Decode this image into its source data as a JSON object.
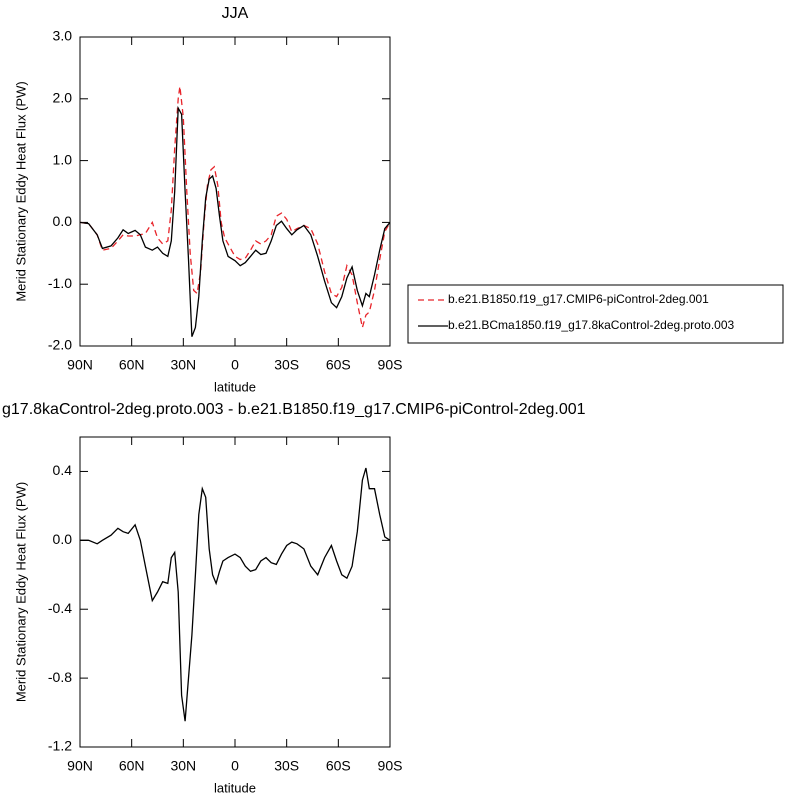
{
  "chart_data": [
    {
      "type": "line",
      "title": "JJA",
      "xlabel": "latitude",
      "ylabel": "Merid Stationary Eddy Heat Flux (PW)",
      "xlim": [
        90,
        -90
      ],
      "xticks": [
        {
          "value": 90,
          "label": "90N"
        },
        {
          "value": 60,
          "label": "60N"
        },
        {
          "value": 30,
          "label": "30N"
        },
        0,
        {
          "value": -30,
          "label": "30S"
        },
        {
          "value": -60,
          "label": "60S"
        },
        {
          "value": -90,
          "label": "90S"
        }
      ],
      "ylim": [
        -2,
        3
      ],
      "yticks": [
        {
          "value": -2,
          "label": "-2.0"
        },
        {
          "value": -1,
          "label": "-1.0"
        },
        {
          "value": 0,
          "label": "0.0"
        },
        {
          "value": 1,
          "label": "1.0"
        },
        {
          "value": 2,
          "label": "2.0"
        },
        {
          "value": 3,
          "label": "3.0"
        }
      ],
      "legend": "right",
      "series": [
        {
          "name": "b.e21.B1850.f19_g17.CMIP6-piControl-2deg.001",
          "color": "#e8242a",
          "style": "dashed",
          "x": [
            90,
            85,
            80,
            77,
            72,
            68,
            65,
            62,
            58,
            55,
            52,
            48,
            45,
            42,
            39,
            37,
            35,
            33,
            32,
            30,
            28,
            26,
            24,
            22,
            20,
            18,
            16,
            14,
            12,
            10,
            8,
            6,
            3,
            0,
            -3,
            -6,
            -9,
            -12,
            -15,
            -18,
            -21,
            -24,
            -27,
            -30,
            -33,
            -36,
            -40,
            -44,
            -48,
            -52,
            -56,
            -59,
            -62,
            -65,
            -68,
            -71,
            -74,
            -76,
            -78,
            -81,
            -84,
            -87,
            -90
          ],
          "values": [
            0,
            -0.02,
            -0.2,
            -0.45,
            -0.42,
            -0.3,
            -0.2,
            -0.22,
            -0.22,
            -0.2,
            -0.18,
            0.0,
            -0.25,
            -0.35,
            -0.3,
            0.2,
            1.2,
            2.0,
            2.2,
            1.7,
            0.5,
            -0.5,
            -1.1,
            -1.15,
            -0.8,
            0.0,
            0.6,
            0.85,
            0.9,
            0.6,
            0.0,
            -0.25,
            -0.4,
            -0.55,
            -0.6,
            -0.58,
            -0.45,
            -0.3,
            -0.35,
            -0.3,
            -0.2,
            0.1,
            0.15,
            0.05,
            -0.15,
            -0.1,
            -0.05,
            -0.1,
            -0.35,
            -0.8,
            -1.15,
            -1.2,
            -1.05,
            -0.7,
            -0.85,
            -1.3,
            -1.7,
            -1.5,
            -1.45,
            -1.1,
            -0.6,
            -0.15,
            0
          ]
        },
        {
          "name": "b.e21.BCma1850.f19_g17.8kaControl-2deg.proto.003",
          "color": "#000000",
          "style": "solid",
          "x": [
            90,
            85,
            80,
            77,
            72,
            68,
            65,
            62,
            58,
            55,
            52,
            48,
            45,
            42,
            39,
            37,
            35,
            33,
            31,
            29,
            27,
            25,
            23,
            21,
            19,
            17,
            15,
            13,
            11,
            9,
            7,
            4,
            0,
            -3,
            -6,
            -9,
            -12,
            -15,
            -18,
            -21,
            -24,
            -27,
            -30,
            -33,
            -36,
            -40,
            -44,
            -48,
            -52,
            -56,
            -59,
            -62,
            -65,
            -68,
            -71,
            -74,
            -76,
            -78,
            -81,
            -84,
            -87,
            -90
          ],
          "values": [
            0,
            -0.02,
            -0.2,
            -0.42,
            -0.38,
            -0.25,
            -0.12,
            -0.18,
            -0.13,
            -0.2,
            -0.4,
            -0.45,
            -0.4,
            -0.5,
            -0.55,
            -0.3,
            0.5,
            1.85,
            1.75,
            0.5,
            -0.6,
            -1.85,
            -1.7,
            -1.2,
            -0.3,
            0.4,
            0.7,
            0.75,
            0.55,
            0.1,
            -0.3,
            -0.55,
            -0.62,
            -0.7,
            -0.65,
            -0.55,
            -0.45,
            -0.52,
            -0.5,
            -0.3,
            -0.05,
            0.02,
            -0.1,
            -0.2,
            -0.12,
            -0.05,
            -0.2,
            -0.55,
            -0.95,
            -1.3,
            -1.38,
            -1.2,
            -0.9,
            -0.72,
            -1.1,
            -1.35,
            -1.15,
            -1.2,
            -0.85,
            -0.45,
            -0.1,
            0
          ]
        }
      ]
    },
    {
      "type": "line",
      "title": "g17.8kaControl-2deg.proto.003 - b.e21.B1850.f19_g17.CMIP6-piControl-2deg.001",
      "xlabel": "latitude",
      "ylabel": "Merid Stationary Eddy Heat Flux (PW)",
      "xlim": [
        90,
        -90
      ],
      "xticks": [
        {
          "value": 90,
          "label": "90N"
        },
        {
          "value": 60,
          "label": "60N"
        },
        {
          "value": 30,
          "label": "30N"
        },
        0,
        {
          "value": -30,
          "label": "30S"
        },
        {
          "value": -60,
          "label": "60S"
        },
        {
          "value": -90,
          "label": "90S"
        }
      ],
      "ylim": [
        -1.2,
        0.6
      ],
      "yticks": [
        -1.2,
        -0.8,
        -0.4,
        {
          "value": 0,
          "label": "0.0"
        },
        0.4
      ],
      "series": [
        {
          "color": "#000000",
          "style": "solid",
          "x": [
            90,
            85,
            80,
            77,
            72,
            68,
            65,
            62,
            58,
            55,
            52,
            48,
            45,
            42,
            39,
            37,
            35,
            33,
            31,
            29,
            27,
            25,
            23,
            21,
            19,
            17,
            15,
            13,
            11,
            9,
            7,
            4,
            0,
            -3,
            -6,
            -9,
            -12,
            -15,
            -18,
            -21,
            -24,
            -27,
            -30,
            -33,
            -36,
            -40,
            -44,
            -48,
            -52,
            -56,
            -59,
            -62,
            -65,
            -68,
            -71,
            -74,
            -76,
            -78,
            -81,
            -84,
            -87,
            -90
          ],
          "values": [
            0,
            0,
            -0.02,
            0,
            0.03,
            0.07,
            0.05,
            0.04,
            0.09,
            0.0,
            -0.15,
            -0.35,
            -0.3,
            -0.24,
            -0.25,
            -0.1,
            -0.07,
            -0.3,
            -0.9,
            -1.05,
            -0.8,
            -0.55,
            -0.2,
            0.15,
            0.3,
            0.25,
            -0.05,
            -0.2,
            -0.25,
            -0.18,
            -0.12,
            -0.1,
            -0.08,
            -0.1,
            -0.15,
            -0.18,
            -0.17,
            -0.12,
            -0.1,
            -0.13,
            -0.14,
            -0.08,
            -0.03,
            -0.01,
            -0.02,
            -0.05,
            -0.15,
            -0.2,
            -0.1,
            -0.03,
            -0.12,
            -0.2,
            -0.22,
            -0.15,
            0.05,
            0.35,
            0.42,
            0.3,
            0.3,
            0.15,
            0.02,
            0
          ]
        }
      ]
    }
  ]
}
